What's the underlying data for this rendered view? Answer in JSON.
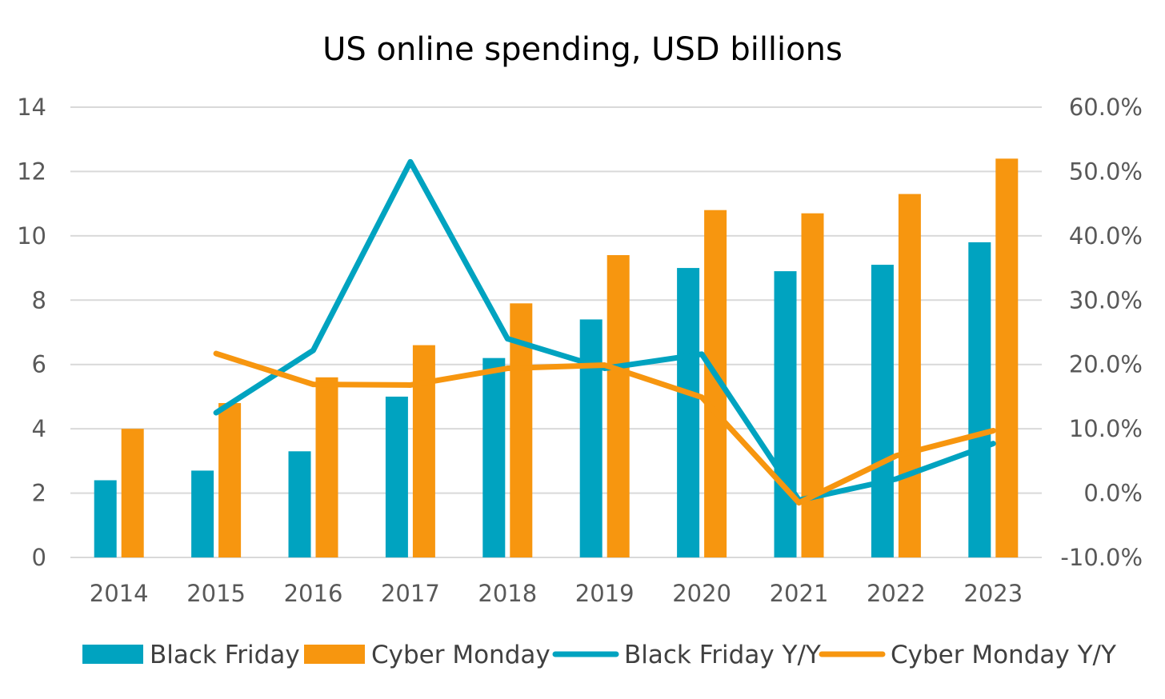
{
  "chart_data": {
    "type": "bar",
    "title": "US online spending, USD billions",
    "categories": [
      "2014",
      "2015",
      "2016",
      "2017",
      "2018",
      "2019",
      "2020",
      "2021",
      "2022",
      "2023"
    ],
    "y_left": {
      "min": 0,
      "max": 14,
      "ticks": [
        "0",
        "2",
        "4",
        "6",
        "8",
        "10",
        "12",
        "14"
      ]
    },
    "y_right": {
      "min": -10,
      "max": 60,
      "ticks": [
        "-10.0%",
        "0.0%",
        "10.0%",
        "20.0%",
        "30.0%",
        "40.0%",
        "50.0%",
        "60.0%"
      ]
    },
    "grid": true,
    "legend_position": "bottom",
    "series": [
      {
        "name": "Black Friday",
        "kind": "bar",
        "axis": "left",
        "color": "#00A3C0",
        "values": [
          2.4,
          2.7,
          3.3,
          5.0,
          6.2,
          7.4,
          9.0,
          8.9,
          9.1,
          9.8
        ]
      },
      {
        "name": "Cyber Monday",
        "kind": "bar",
        "axis": "left",
        "color": "#F7960F",
        "values": [
          4.0,
          4.8,
          5.6,
          6.6,
          7.9,
          9.4,
          10.8,
          10.7,
          11.3,
          12.4
        ]
      },
      {
        "name": "Black Friday Y/Y",
        "kind": "line",
        "axis": "right",
        "color": "#00A3C0",
        "values": [
          null,
          12.5,
          22.2,
          51.5,
          24.0,
          19.4,
          21.6,
          -1.1,
          2.2,
          7.7
        ]
      },
      {
        "name": "Cyber Monday Y/Y",
        "kind": "line",
        "axis": "right",
        "color": "#F7960F",
        "values": [
          null,
          21.7,
          16.9,
          16.8,
          19.4,
          19.9,
          14.9,
          -1.5,
          5.8,
          9.7
        ]
      }
    ]
  }
}
